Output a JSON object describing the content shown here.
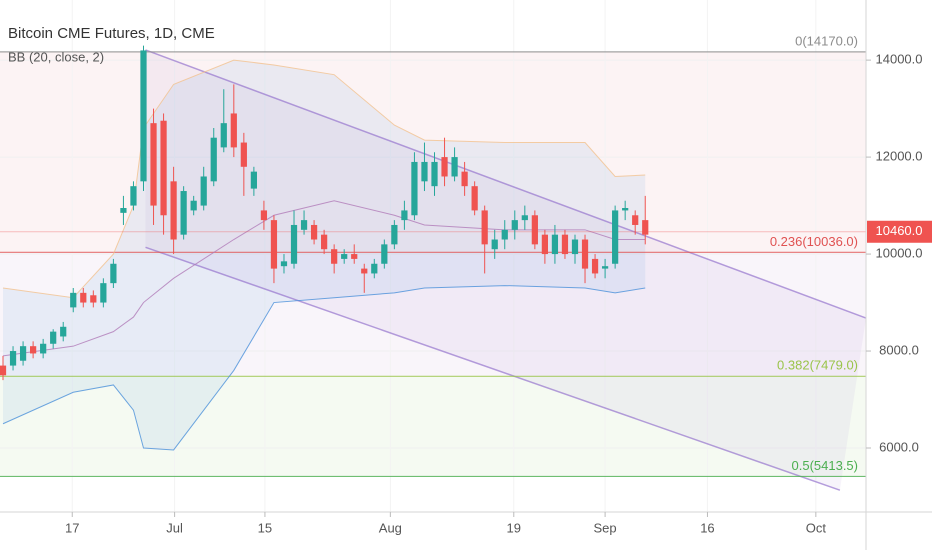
{
  "chart_data": {
    "type": "candlestick",
    "title": "Bitcoin CME Futures, 1D, CME",
    "indicator": "BB (20, close, 2)",
    "up_color": "#26a69a",
    "down_color": "#ef5350",
    "x": [
      0,
      1,
      2,
      3,
      4,
      5,
      6,
      7,
      8,
      9,
      10,
      11,
      12,
      13,
      14,
      15,
      16,
      17,
      18,
      19,
      20,
      21,
      22,
      23,
      24,
      25,
      26,
      27,
      28,
      29,
      30,
      31,
      32,
      33,
      34,
      35,
      36,
      37,
      38,
      39,
      40,
      41,
      42,
      43,
      44,
      45,
      46,
      47,
      48,
      49,
      50,
      51,
      52,
      53,
      54,
      55,
      56,
      57,
      58,
      59,
      60,
      61,
      62,
      63,
      64
    ],
    "open": [
      7700,
      7700,
      7800,
      8100,
      7950,
      8150,
      8300,
      8900,
      9200,
      9150,
      9000,
      9400,
      10850,
      11000,
      11500,
      12700,
      12750,
      11500,
      10400,
      10900,
      11000,
      11500,
      12200,
      12900,
      12300,
      11350,
      10900,
      10700,
      9750,
      9800,
      10500,
      10600,
      10400,
      10100,
      9900,
      10000,
      9700,
      9600,
      9800,
      10200,
      10700,
      10800,
      11500,
      11400,
      12000,
      11600,
      11700,
      11400,
      10900,
      10100,
      10300,
      10500,
      10700,
      10800,
      10400,
      10000,
      10400,
      10000,
      10300,
      9900,
      9700,
      9800,
      10900,
      10800,
      10700
    ],
    "high": [
      7900,
      8100,
      8200,
      8200,
      8250,
      8450,
      8600,
      9300,
      9300,
      9250,
      9500,
      9900,
      11200,
      11500,
      14300,
      13000,
      12900,
      11800,
      11400,
      11200,
      11800,
      12600,
      13400,
      13500,
      12500,
      11800,
      11100,
      10800,
      10000,
      10900,
      10900,
      10700,
      10500,
      10200,
      10100,
      10200,
      9800,
      9900,
      10300,
      10700,
      11100,
      12100,
      12300,
      12100,
      12400,
      12200,
      11900,
      11500,
      11000,
      10500,
      10700,
      10900,
      11000,
      10900,
      10500,
      10600,
      10500,
      10400,
      10400,
      10000,
      9900,
      11000,
      11100,
      10900,
      11200
    ],
    "low": [
      7400,
      7600,
      7700,
      7850,
      7850,
      8050,
      8200,
      8800,
      8900,
      8900,
      8900,
      9300,
      10600,
      10900,
      11300,
      10600,
      10400,
      10000,
      10300,
      10800,
      10900,
      11400,
      12100,
      12000,
      11200,
      11200,
      10500,
      9400,
      9600,
      9700,
      10400,
      10200,
      10000,
      9600,
      9800,
      9800,
      9200,
      9500,
      9700,
      10100,
      10500,
      10700,
      11300,
      11200,
      11400,
      11500,
      11200,
      10800,
      9600,
      9900,
      10100,
      10300,
      10500,
      10100,
      9800,
      9800,
      9900,
      9800,
      9400,
      9500,
      9500,
      9700,
      10700,
      10400,
      10200
    ],
    "close": [
      7500,
      8000,
      8100,
      7950,
      8150,
      8400,
      8500,
      9200,
      9000,
      9000,
      9400,
      9800,
      10950,
      11400,
      14200,
      11000,
      10800,
      10300,
      11300,
      11100,
      11600,
      12400,
      12700,
      12200,
      11800,
      11700,
      10700,
      9700,
      9850,
      10600,
      10700,
      10300,
      10100,
      9800,
      10000,
      9900,
      9600,
      9800,
      10200,
      10600,
      10900,
      11900,
      11900,
      11900,
      11600,
      12000,
      11400,
      10900,
      10200,
      10300,
      10500,
      10700,
      10800,
      10200,
      10000,
      10400,
      10000,
      10300,
      9700,
      9600,
      9750,
      10900,
      10950,
      10600,
      10400
    ],
    "bollinger": {
      "color": "#4a90d9",
      "basis_color": "#b07ab8",
      "x": [
        0,
        7,
        11,
        13,
        14,
        17,
        23,
        27,
        33,
        39,
        42,
        50,
        58,
        61,
        64
      ],
      "upper": [
        9300,
        9100,
        10000,
        11000,
        12600,
        13500,
        14000,
        13900,
        13700,
        12660,
        12350,
        12300,
        12300,
        11600,
        11630
      ],
      "basis": [
        7900,
        8100,
        8400,
        8700,
        9000,
        9500,
        10300,
        10800,
        11100,
        10800,
        10600,
        10500,
        10500,
        10300,
        10300
      ],
      "lower": [
        6500,
        7150,
        7300,
        6780,
        6000,
        5960,
        7600,
        9000,
        9100,
        9200,
        9300,
        9350,
        9300,
        9200,
        9300
      ]
    },
    "channel": {
      "color": "#9575cd",
      "lines": [
        {
          "x": [
            14.2,
            86
          ],
          "y": [
            14210,
            8680
          ]
        },
        {
          "x": [
            14.2,
            83.4
          ],
          "y": [
            10140,
            5130
          ]
        }
      ]
    },
    "fib_levels": [
      {
        "value": 14170,
        "label": "0(14170.0)",
        "color": "#8c8c8c"
      },
      {
        "value": 10036,
        "label": "0.236(10036.0)",
        "color": "#e05252"
      },
      {
        "value": 7479,
        "label": "0.382(7479.0)",
        "color": "#9ac44a"
      },
      {
        "value": 5413.5,
        "label": "0.5(5413.5)",
        "color": "#4caf50"
      }
    ],
    "last_price": {
      "value": 10460,
      "label": "10460.0",
      "color": "#ef5350"
    },
    "xlim": [
      -0.3,
      86.0
    ],
    "xticks": [
      {
        "value": 6.9,
        "label": "17"
      },
      {
        "value": 17.1,
        "label": "Jul"
      },
      {
        "value": 26.1,
        "label": "15"
      },
      {
        "value": 38.6,
        "label": "Aug"
      },
      {
        "value": 50.9,
        "label": "19"
      },
      {
        "value": 60.0,
        "label": "Sep"
      },
      {
        "value": 70.2,
        "label": "16"
      },
      {
        "value": 81.0,
        "label": "Oct"
      }
    ],
    "ylim": [
      4680,
      15240
    ],
    "yticks": [
      {
        "value": 6000,
        "label": "6000.0"
      },
      {
        "value": 8000,
        "label": "8000.0"
      },
      {
        "value": 10000,
        "label": "10000.0"
      },
      {
        "value": 12000,
        "label": "12000.0"
      },
      {
        "value": 14000,
        "label": "14000.0"
      }
    ]
  }
}
